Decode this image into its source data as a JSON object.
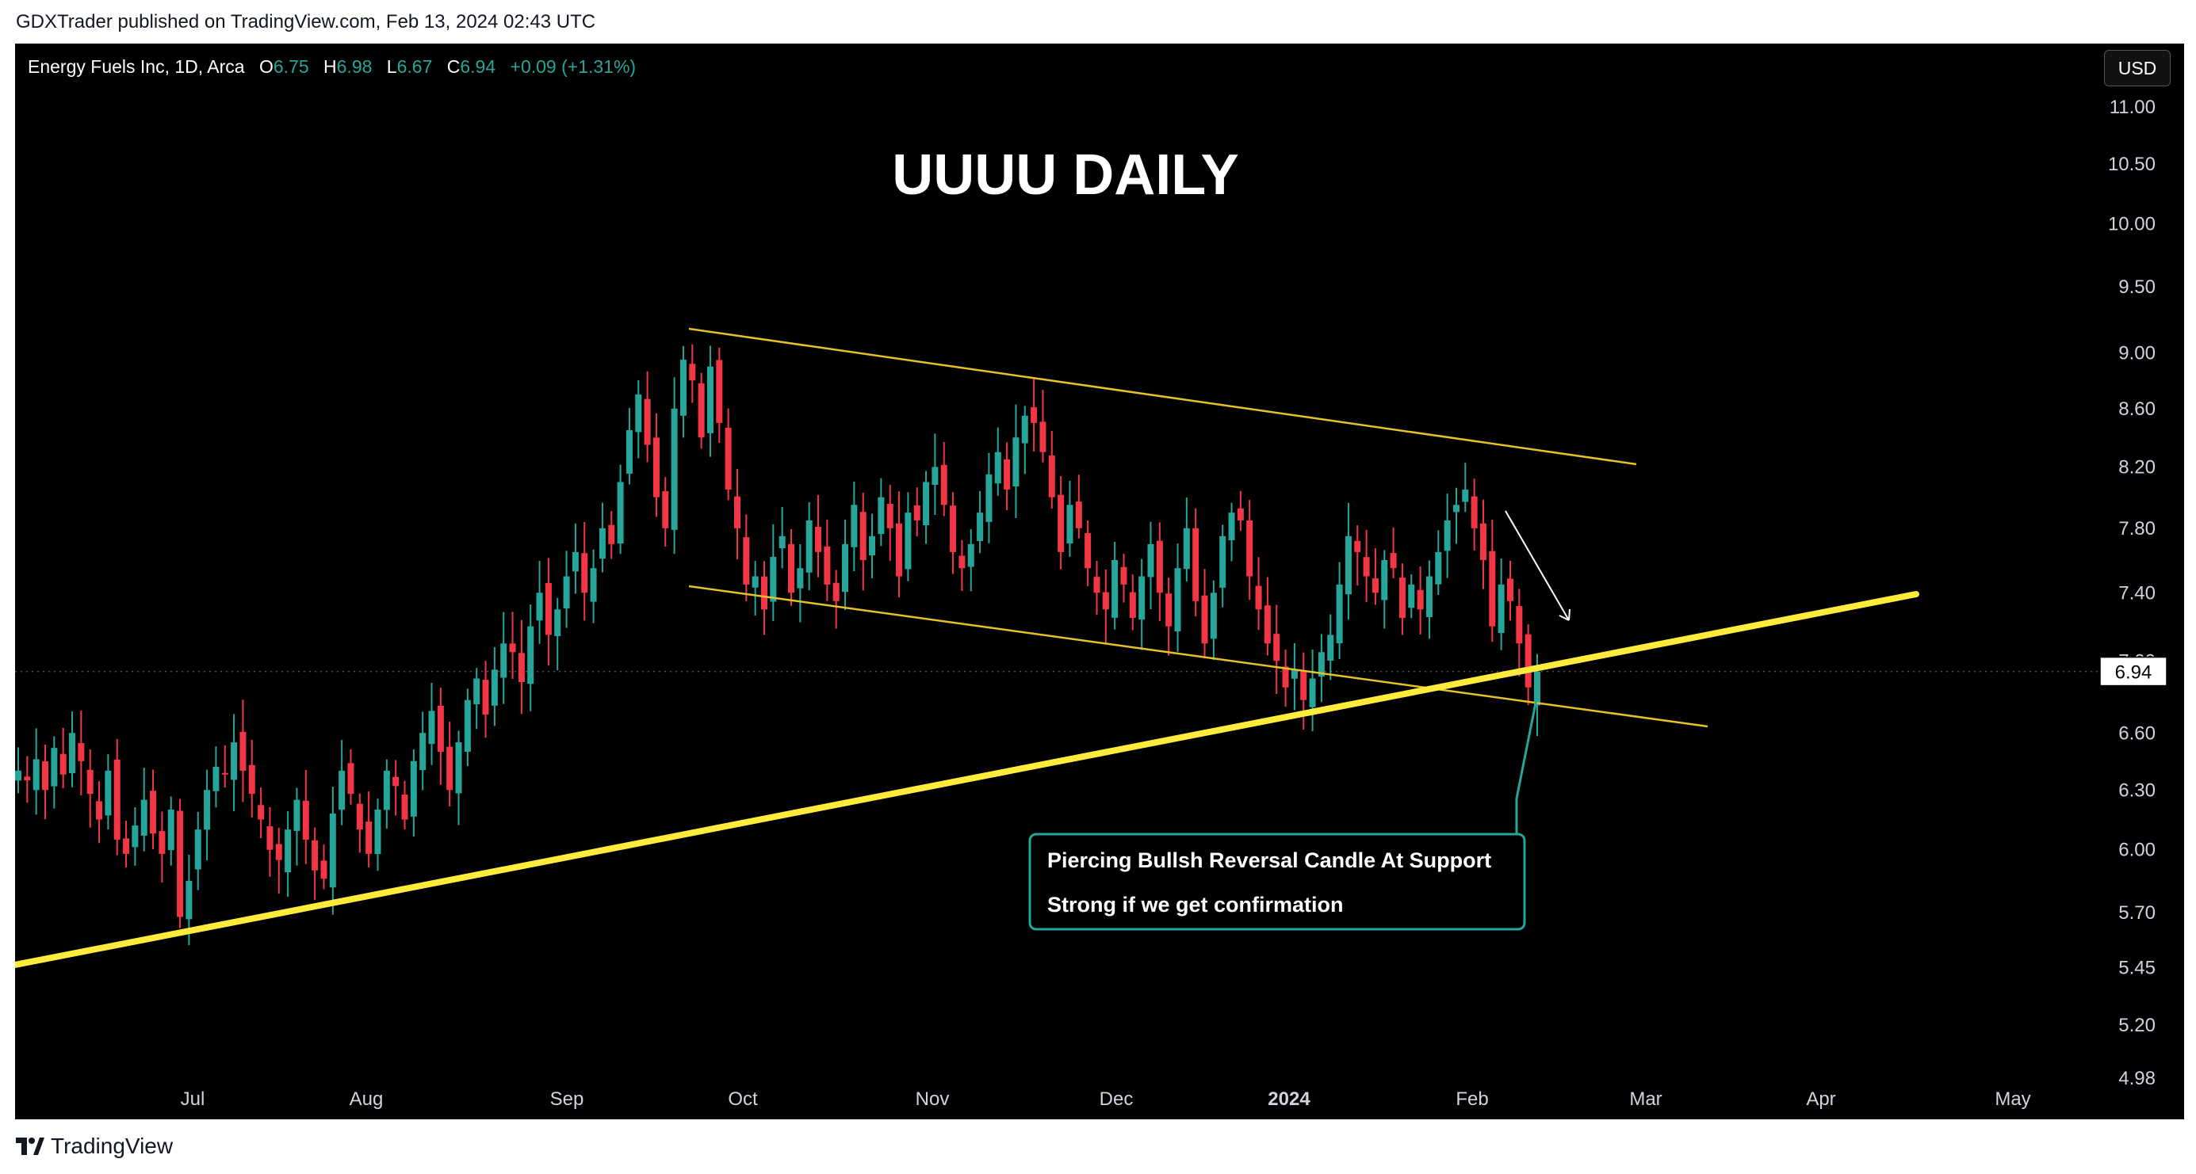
{
  "header": {
    "published": "GDXTrader published on TradingView.com, Feb 13, 2024 02:43 UTC"
  },
  "legend": {
    "symbol": "Energy Fuels Inc, 1D, Arca",
    "o_label": "O",
    "o_value": "6.75",
    "h_label": "H",
    "h_value": "6.98",
    "l_label": "L",
    "l_value": "6.67",
    "c_label": "C",
    "c_value": "6.94",
    "change": "+0.09 (+1.31%)"
  },
  "currency_button": "USD",
  "footer": {
    "brand": "TradingView"
  },
  "colors": {
    "up": "#26a69a",
    "down": "#f23645",
    "trend": "#ffeb3b",
    "channel": "#e6c229",
    "callout": "#26a69a"
  },
  "chart_data": {
    "type": "candlestick",
    "title": "UUUU DAILY",
    "x_ticks": [
      "Jul",
      "Aug",
      "Sep",
      "Oct",
      "Nov",
      "Dec",
      "2024",
      "Feb",
      "Mar",
      "Apr",
      "May"
    ],
    "y_ticks": [
      "4.98",
      "5.20",
      "5.45",
      "5.70",
      "6.00",
      "6.30",
      "6.60",
      "7.00",
      "7.40",
      "7.80",
      "8.20",
      "8.60",
      "9.00",
      "9.50",
      "10.00",
      "10.50",
      "11.00"
    ],
    "y_scale": "log",
    "ylim": [
      4.8,
      11.3
    ],
    "last_price": "6.94",
    "annotation": {
      "line1": "Piercing Bullsh Reversal Candle At Support",
      "line2": "Strong if we get confirmation"
    },
    "close_series": [
      {
        "month": "Jun",
        "closes": [
          6.4,
          6.35,
          6.46,
          6.3,
          6.52,
          6.38,
          6.6,
          6.45,
          6.28,
          6.15,
          6.4,
          6.05,
          5.98,
          6.12,
          6.25,
          6.08
        ]
      },
      {
        "month": "Jul",
        "closes": [
          5.98,
          6.2,
          5.68,
          5.85,
          6.1,
          6.3,
          6.42,
          6.38,
          6.55,
          6.4,
          6.28,
          6.15,
          6.0,
          5.95,
          6.1,
          6.25,
          6.05,
          5.9,
          5.86,
          6.18,
          6.4
        ]
      },
      {
        "month": "Aug",
        "closes": [
          6.28,
          6.1,
          5.98,
          6.2,
          6.4,
          6.32,
          6.15,
          6.45,
          6.6,
          6.72,
          6.5,
          6.3,
          6.55,
          6.78,
          6.9,
          6.7,
          6.95,
          7.1,
          7.05,
          6.88,
          7.2,
          7.4
        ]
      },
      {
        "month": "Sep",
        "closes": [
          7.15,
          7.3,
          7.5,
          7.65,
          7.4,
          7.55,
          7.8,
          7.7,
          8.1,
          8.45,
          8.7,
          8.35,
          8.0,
          7.8,
          8.6,
          8.95,
          8.8,
          8.4,
          8.9,
          8.5,
          8.05
        ]
      },
      {
        "month": "Oct",
        "closes": [
          7.8,
          7.45,
          7.5,
          7.3,
          7.62,
          7.75,
          7.4,
          7.55,
          7.85,
          7.65,
          7.45,
          7.35,
          7.7,
          7.95,
          7.6,
          7.75,
          8.0,
          7.8,
          7.5,
          7.9,
          7.85,
          8.1
        ]
      },
      {
        "month": "Nov",
        "closes": [
          8.2,
          7.95,
          7.65,
          7.55,
          7.7,
          7.9,
          8.15,
          8.3,
          8.05,
          8.4,
          8.55,
          8.5,
          8.3,
          8.0,
          7.65,
          7.95,
          7.8,
          7.55,
          7.4,
          7.3,
          7.6
        ]
      },
      {
        "month": "Dec",
        "closes": [
          7.45,
          7.25,
          7.5,
          7.7,
          7.4,
          7.2,
          7.55,
          7.8,
          7.35,
          7.1,
          7.4,
          7.75,
          7.9,
          7.85,
          7.5,
          7.3,
          7.1,
          7.0,
          6.85,
          6.95,
          6.78
        ]
      },
      {
        "month": "Jan",
        "closes": [
          6.9,
          7.05,
          7.15,
          7.45,
          7.75,
          7.65,
          7.5,
          7.4,
          7.6,
          7.55,
          7.25,
          7.45,
          7.3,
          7.5,
          7.65,
          7.85,
          7.95,
          8.05,
          7.8,
          7.6
        ]
      },
      {
        "month": "Feb",
        "closes": [
          7.2,
          7.45,
          7.35,
          7.1,
          6.85,
          6.94
        ]
      }
    ]
  }
}
